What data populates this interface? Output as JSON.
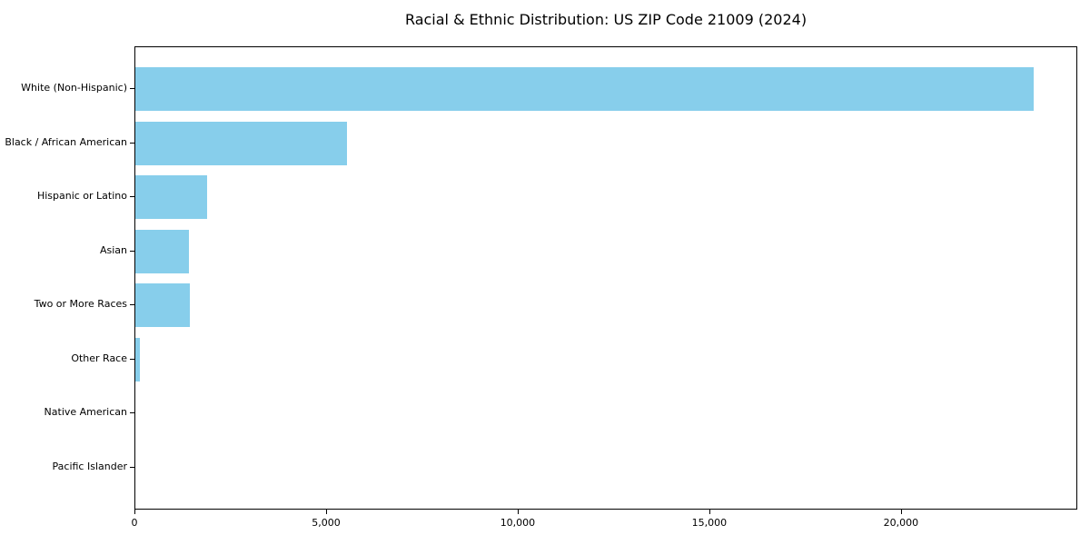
{
  "chart_data": {
    "type": "bar",
    "orientation": "horizontal",
    "title": "Racial & Ethnic Distribution: US ZIP Code 21009 (2024)",
    "categories": [
      "White (Non-Hispanic)",
      "Black / African American",
      "Hispanic or Latino",
      "Asian",
      "Two or More Races",
      "Other Race",
      "Native American",
      "Pacific Islander"
    ],
    "values": [
      23430,
      5520,
      1870,
      1400,
      1420,
      120,
      0,
      0
    ],
    "xlabel": "",
    "ylabel": "",
    "xlim": [
      0,
      24600
    ],
    "xticks": [
      0,
      5000,
      10000,
      15000,
      20000
    ],
    "xtick_labels": [
      "0",
      "5,000",
      "10,000",
      "15,000",
      "20,000"
    ],
    "bar_color": "#87CEEB",
    "axis_color": "#000000",
    "background_color": "#FFFFFF",
    "grid": false,
    "legend": "none"
  }
}
